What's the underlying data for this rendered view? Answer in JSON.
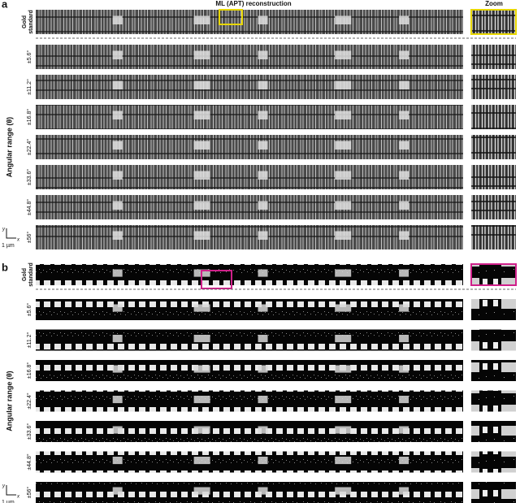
{
  "header": {
    "title": "ML (APT) reconstruction",
    "zoom": "Zoom"
  },
  "panels": [
    {
      "label": "a",
      "gold_standard": [
        "Gold",
        "standard"
      ],
      "axis_label": "Angular range (θ)",
      "rows": [
        "±5.6°",
        "±11.2°",
        "±16.8°",
        "±22.4°",
        "±33.6°",
        "±44.8°",
        "±56°"
      ],
      "scale_bar": {
        "y": "y",
        "x": "x",
        "label": "1 µm"
      }
    },
    {
      "label": "b",
      "gold_standard": [
        "Gold",
        "standard"
      ],
      "axis_label": "Angular range (θ)",
      "rows": [
        "±5.6°",
        "±11.2°",
        "±16.8°",
        "±22.4°",
        "±33.6°",
        "±44.8°",
        "±56°"
      ],
      "scale_bar": {
        "y": "y",
        "x": "x",
        "label": "1 µm"
      }
    }
  ]
}
